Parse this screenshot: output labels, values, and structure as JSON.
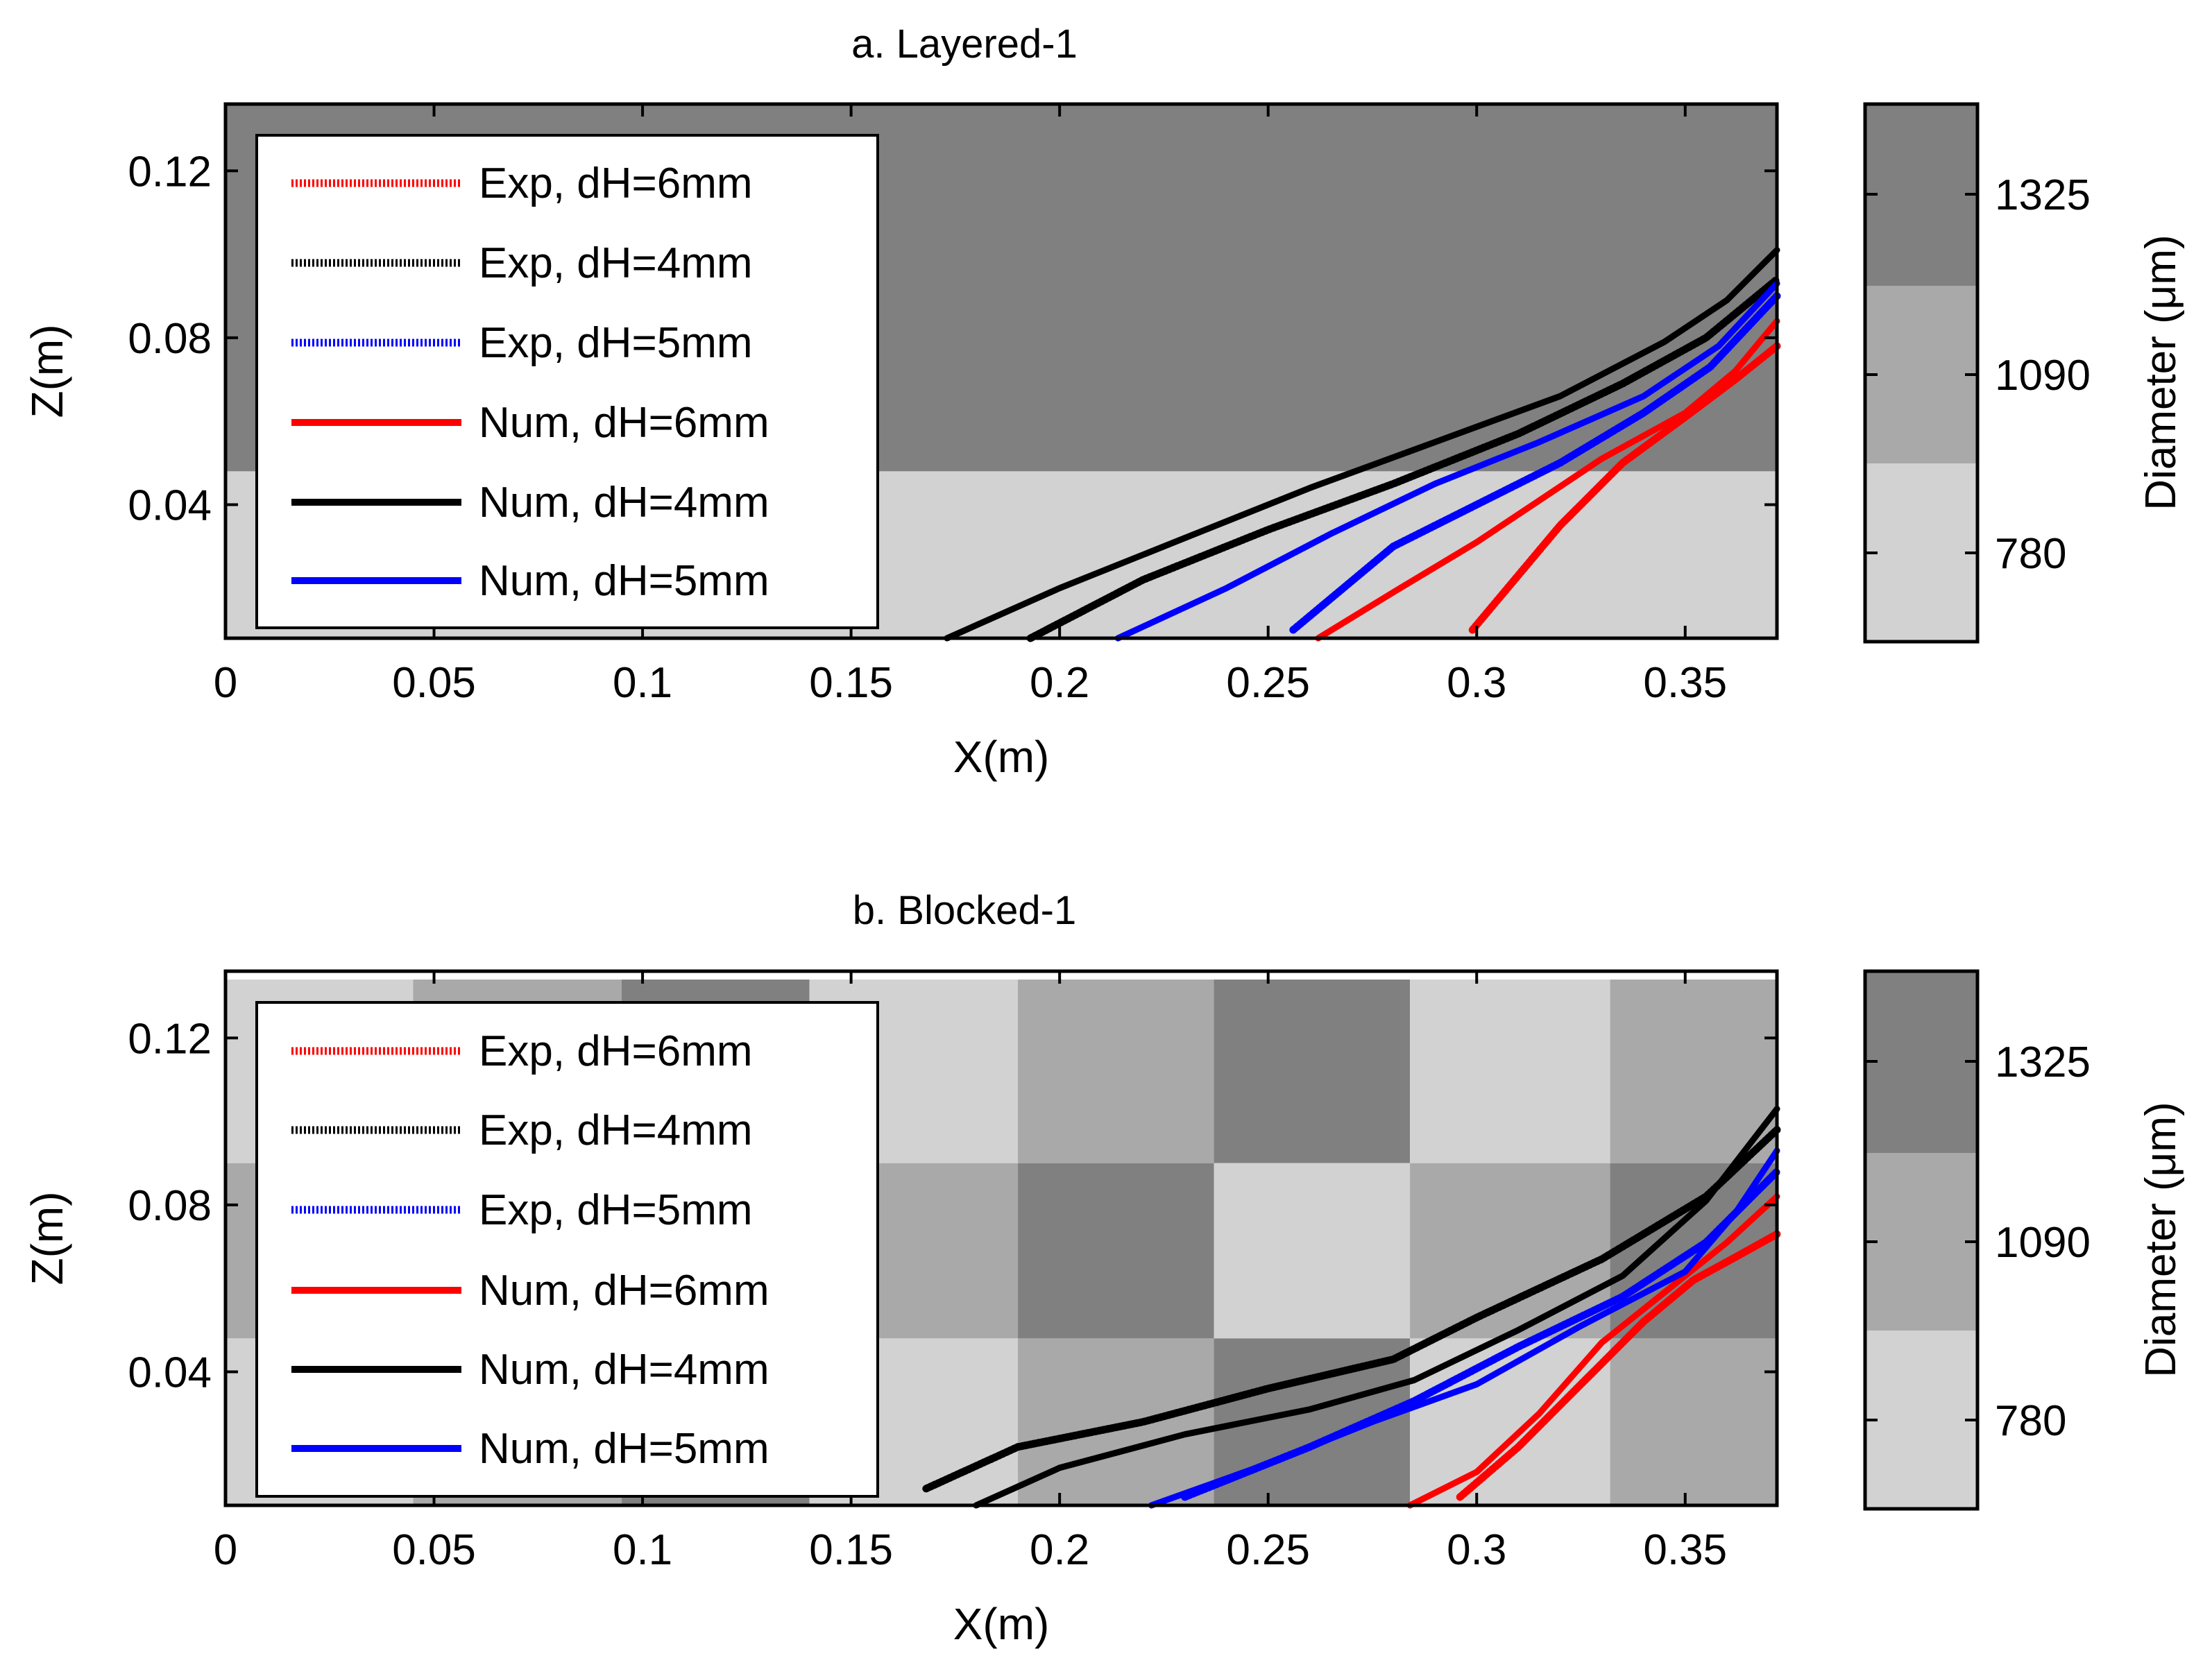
{
  "colors": {
    "light": "#d2d2d2",
    "mid": "#a9a9a9",
    "dark": "#808080",
    "exp6": "#ff0000",
    "exp4": "#000000",
    "exp5": "#0000ff"
  },
  "legend_line_labels": [
    "Exp, dH=6mm",
    "Exp, dH=4mm",
    "Exp, dH=5mm",
    "Num, dH=6mm",
    "Num, dH=4mm",
    "Num, dH=5mm"
  ],
  "colorbar": {
    "label": "Diameter (μm)",
    "ticks": [
      "1325",
      "1090",
      "780"
    ]
  },
  "chart_data": [
    {
      "type": "line",
      "title": "a. Layered-1",
      "xlabel": "X(m)",
      "ylabel": "Z(m)",
      "xlim": [
        0,
        0.372
      ],
      "ylim": [
        0.008,
        0.136
      ],
      "xticks": [
        "0",
        "0.05",
        "0.1",
        "0.15",
        "0.2",
        "0.25",
        "0.3",
        "0.35"
      ],
      "xtick_values": [
        0,
        0.05,
        0.1,
        0.15,
        0.2,
        0.25,
        0.3,
        0.35
      ],
      "yticks": [
        "0.04",
        "0.08",
        "0.12"
      ],
      "ytick_values": [
        0.04,
        0.08,
        0.12
      ],
      "background_regions": [
        {
          "x": [
            0,
            0.372
          ],
          "z": [
            0.008,
            0.048
          ],
          "diameter": 780
        },
        {
          "x": [
            0,
            0.372
          ],
          "z": [
            0.048,
            0.136
          ],
          "diameter": 1325
        }
      ],
      "series": [
        {
          "name": "Exp, dH=6mm",
          "style": "exp",
          "color": "exp6",
          "x": [
            0.299,
            0.32,
            0.335,
            0.35,
            0.362,
            0.372
          ],
          "y": [
            0.01,
            0.035,
            0.05,
            0.061,
            0.07,
            0.078
          ]
        },
        {
          "name": "Exp, dH=4mm",
          "style": "exp",
          "color": "exp4",
          "x": [
            0.193,
            0.22,
            0.25,
            0.28,
            0.31,
            0.335,
            0.355,
            0.372
          ],
          "y": [
            0.008,
            0.022,
            0.034,
            0.045,
            0.057,
            0.069,
            0.08,
            0.094
          ]
        },
        {
          "name": "Exp, dH=5mm",
          "style": "exp",
          "color": "exp5",
          "x": [
            0.256,
            0.28,
            0.3,
            0.32,
            0.34,
            0.356,
            0.372
          ],
          "y": [
            0.01,
            0.03,
            0.04,
            0.05,
            0.062,
            0.073,
            0.09
          ]
        },
        {
          "name": "Num, dH=6mm",
          "style": "num",
          "color": "exp6",
          "x": [
            0.262,
            0.28,
            0.3,
            0.315,
            0.33,
            0.35,
            0.362,
            0.372
          ],
          "y": [
            0.008,
            0.019,
            0.031,
            0.041,
            0.051,
            0.062,
            0.072,
            0.084
          ]
        },
        {
          "name": "Num, dH=4mm",
          "style": "num",
          "color": "exp4",
          "x": [
            0.173,
            0.2,
            0.23,
            0.26,
            0.29,
            0.32,
            0.345,
            0.36,
            0.372
          ],
          "y": [
            0.008,
            0.02,
            0.032,
            0.044,
            0.055,
            0.066,
            0.079,
            0.089,
            0.101
          ]
        },
        {
          "name": "Num, dH=5mm",
          "style": "num",
          "color": "exp5",
          "x": [
            0.214,
            0.24,
            0.265,
            0.29,
            0.315,
            0.34,
            0.358,
            0.372
          ],
          "y": [
            0.008,
            0.02,
            0.033,
            0.045,
            0.055,
            0.066,
            0.078,
            0.093
          ]
        }
      ]
    },
    {
      "type": "line",
      "title": "b. Blocked-1",
      "xlabel": "X(m)",
      "ylabel": "Z(m)",
      "xlim": [
        0,
        0.372
      ],
      "ylim": [
        0.008,
        0.136
      ],
      "xticks": [
        "0",
        "0.05",
        "0.1",
        "0.15",
        "0.2",
        "0.25",
        "0.3",
        "0.35"
      ],
      "xtick_values": [
        0,
        0.05,
        0.1,
        0.15,
        0.2,
        0.25,
        0.3,
        0.35
      ],
      "yticks": [
        "0.04",
        "0.08",
        "0.12"
      ],
      "ytick_values": [
        0.04,
        0.08,
        0.12
      ],
      "background_regions": [
        {
          "x": [
            0,
            0.045
          ],
          "z": [
            0.09,
            0.134
          ],
          "diameter": 780
        },
        {
          "x": [
            0.045,
            0.095
          ],
          "z": [
            0.09,
            0.134
          ],
          "diameter": 1090
        },
        {
          "x": [
            0.095,
            0.14
          ],
          "z": [
            0.09,
            0.134
          ],
          "diameter": 1325
        },
        {
          "x": [
            0.14,
            0.19
          ],
          "z": [
            0.09,
            0.134
          ],
          "diameter": 780
        },
        {
          "x": [
            0.19,
            0.237
          ],
          "z": [
            0.09,
            0.134
          ],
          "diameter": 1090
        },
        {
          "x": [
            0.237,
            0.284
          ],
          "z": [
            0.09,
            0.134
          ],
          "diameter": 1325
        },
        {
          "x": [
            0.284,
            0.332
          ],
          "z": [
            0.09,
            0.134
          ],
          "diameter": 780
        },
        {
          "x": [
            0.332,
            0.372
          ],
          "z": [
            0.09,
            0.134
          ],
          "diameter": 1090
        },
        {
          "x": [
            0,
            0.045
          ],
          "z": [
            0.048,
            0.09
          ],
          "diameter": 1090
        },
        {
          "x": [
            0.045,
            0.095
          ],
          "z": [
            0.048,
            0.09
          ],
          "diameter": 1325
        },
        {
          "x": [
            0.095,
            0.14
          ],
          "z": [
            0.048,
            0.09
          ],
          "diameter": 780
        },
        {
          "x": [
            0.14,
            0.19
          ],
          "z": [
            0.048,
            0.09
          ],
          "diameter": 1090
        },
        {
          "x": [
            0.19,
            0.237
          ],
          "z": [
            0.048,
            0.09
          ],
          "diameter": 1325
        },
        {
          "x": [
            0.237,
            0.284
          ],
          "z": [
            0.048,
            0.09
          ],
          "diameter": 780
        },
        {
          "x": [
            0.284,
            0.332
          ],
          "z": [
            0.048,
            0.09
          ],
          "diameter": 1090
        },
        {
          "x": [
            0.332,
            0.372
          ],
          "z": [
            0.048,
            0.09
          ],
          "diameter": 1325
        },
        {
          "x": [
            0,
            0.045
          ],
          "z": [
            0.008,
            0.048
          ],
          "diameter": 780
        },
        {
          "x": [
            0.045,
            0.095
          ],
          "z": [
            0.008,
            0.048
          ],
          "diameter": 1090
        },
        {
          "x": [
            0.095,
            0.14
          ],
          "z": [
            0.008,
            0.048
          ],
          "diameter": 1325
        },
        {
          "x": [
            0.14,
            0.19
          ],
          "z": [
            0.008,
            0.048
          ],
          "diameter": 780
        },
        {
          "x": [
            0.19,
            0.237
          ],
          "z": [
            0.008,
            0.048
          ],
          "diameter": 1090
        },
        {
          "x": [
            0.237,
            0.284
          ],
          "z": [
            0.008,
            0.048
          ],
          "diameter": 1325
        },
        {
          "x": [
            0.284,
            0.332
          ],
          "z": [
            0.008,
            0.048
          ],
          "diameter": 780
        },
        {
          "x": [
            0.332,
            0.372
          ],
          "z": [
            0.008,
            0.048
          ],
          "diameter": 1090
        }
      ],
      "series": [
        {
          "name": "Exp, dH=6mm",
          "style": "exp",
          "color": "exp6",
          "x": [
            0.296,
            0.31,
            0.325,
            0.34,
            0.352,
            0.363,
            0.372
          ],
          "y": [
            0.01,
            0.022,
            0.037,
            0.052,
            0.062,
            0.068,
            0.073
          ]
        },
        {
          "name": "Exp, dH=4mm",
          "style": "exp",
          "color": "exp4",
          "x": [
            0.168,
            0.19,
            0.22,
            0.25,
            0.28,
            0.3,
            0.33,
            0.355,
            0.372
          ],
          "y": [
            0.012,
            0.022,
            0.028,
            0.036,
            0.043,
            0.053,
            0.067,
            0.082,
            0.098
          ]
        },
        {
          "name": "Exp, dH=5mm",
          "style": "exp",
          "color": "exp5",
          "x": [
            0.23,
            0.26,
            0.285,
            0.31,
            0.335,
            0.355,
            0.372
          ],
          "y": [
            0.01,
            0.022,
            0.033,
            0.046,
            0.058,
            0.071,
            0.088
          ]
        },
        {
          "name": "Num, dH=6mm",
          "style": "num",
          "color": "exp6",
          "x": [
            0.284,
            0.3,
            0.315,
            0.33,
            0.345,
            0.36,
            0.372
          ],
          "y": [
            0.008,
            0.016,
            0.03,
            0.047,
            0.059,
            0.071,
            0.082
          ]
        },
        {
          "name": "Num, dH=4mm",
          "style": "num",
          "color": "exp4",
          "x": [
            0.18,
            0.2,
            0.23,
            0.26,
            0.285,
            0.31,
            0.335,
            0.355,
            0.372
          ],
          "y": [
            0.008,
            0.017,
            0.025,
            0.031,
            0.038,
            0.05,
            0.063,
            0.081,
            0.103
          ]
        },
        {
          "name": "Num, dH=5mm",
          "style": "num",
          "color": "exp5",
          "x": [
            0.222,
            0.25,
            0.275,
            0.3,
            0.325,
            0.35,
            0.362,
            0.372
          ],
          "y": [
            0.008,
            0.018,
            0.028,
            0.037,
            0.051,
            0.064,
            0.078,
            0.093
          ]
        }
      ]
    }
  ]
}
